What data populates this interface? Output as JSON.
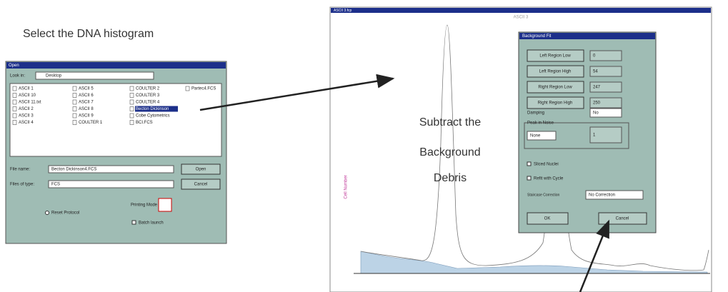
{
  "captions": {
    "select": "Select the DNA histogram",
    "subtract": [
      "Subtract the",
      "Background",
      "Debris"
    ]
  },
  "open_dialog": {
    "title": "Open",
    "look_in_label": "Look in:",
    "look_in": "Desktop",
    "files": [
      "ASCII 1",
      "ASCII 10",
      "ASCII 11.txt",
      "ASCII 2",
      "ASCII 3",
      "ASCII 4",
      "ASCII 5",
      "ASCII 6",
      "ASCII 7",
      "ASCII 8",
      "ASCII 9",
      "COULTER 1",
      "COULTER 2",
      "COULTER 3",
      "COULTER 4",
      "Becton Dickinson",
      "Cobe Cytometrics",
      "BCI.FCS",
      "Partec4.FCS"
    ],
    "file_name_label": "File name:",
    "file_name": "Becton Dickinson4.FCS",
    "files_of_type_label": "Files of type:",
    "files_of_type": "FCS",
    "open": "Open",
    "cancel": "Cancel",
    "printing_mode": "Printing Mode",
    "reset_protocol": "Reset Protocol",
    "batch_launch": "Batch launch"
  },
  "histogram_window": {
    "title": "ASCII 3.fcp",
    "plot_title": "ASCII 3",
    "y_label": "Cell Number"
  },
  "background_fit": {
    "title": "Background Fit",
    "rows": [
      {
        "label": "Left Region Low",
        "value": "0"
      },
      {
        "label": "Left Region High",
        "value": "54"
      },
      {
        "label": "Right Region Low",
        "value": "247"
      },
      {
        "label": "Right Region High",
        "value": "250"
      }
    ],
    "damping_label": "Damping",
    "damping": "No",
    "peak_group": "Peak in Noise",
    "peak_mode": "None",
    "peak_value": "1",
    "sliced_nuclei": "Sliced Nuclei",
    "refit": "Refit with Cycle",
    "staircase_label": "Staircase Correction",
    "staircase": "No Correction",
    "ok": "OK",
    "cancel": "Cancel"
  }
}
